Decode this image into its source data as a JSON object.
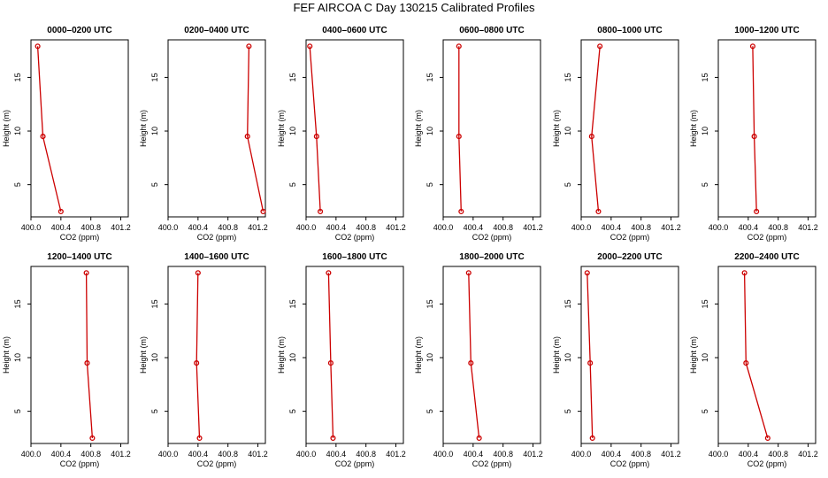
{
  "title": "FEF AIRCOA C  Day 130215  Calibrated Profiles",
  "chart_data": {
    "type": "line",
    "xlabel": "CO2 (ppm)",
    "ylabel": "Height (m)",
    "xlim": [
      400.0,
      401.3
    ],
    "ylim": [
      2.0,
      18.5
    ],
    "xticks": [
      "400.0",
      "400.4",
      "400.8",
      "401.2"
    ],
    "yticks": [
      "5",
      "10",
      "15"
    ],
    "series_color": "#cc0000",
    "panels": [
      {
        "name": "0000–0200 UTC",
        "heights": [
          17.9,
          9.5,
          2.5
        ],
        "co2": [
          400.09,
          400.16,
          400.4
        ]
      },
      {
        "name": "0200–0400 UTC",
        "heights": [
          17.9,
          9.5,
          2.5
        ],
        "co2": [
          401.08,
          401.06,
          401.27
        ]
      },
      {
        "name": "0400–0600 UTC",
        "heights": [
          17.9,
          9.5,
          2.5
        ],
        "co2": [
          400.05,
          400.14,
          400.19
        ]
      },
      {
        "name": "0600–0800 UTC",
        "heights": [
          17.9,
          9.5,
          2.5
        ],
        "co2": [
          400.21,
          400.21,
          400.24
        ]
      },
      {
        "name": "0800–1000 UTC",
        "heights": [
          17.9,
          9.5,
          2.5
        ],
        "co2": [
          400.25,
          400.14,
          400.23
        ]
      },
      {
        "name": "1000–1200 UTC",
        "heights": [
          17.9,
          9.5,
          2.5
        ],
        "co2": [
          400.46,
          400.48,
          400.51
        ]
      },
      {
        "name": "1200–1400 UTC",
        "heights": [
          17.9,
          9.5,
          2.5
        ],
        "co2": [
          400.74,
          400.75,
          400.82
        ]
      },
      {
        "name": "1400–1600 UTC",
        "heights": [
          17.9,
          9.5,
          2.5
        ],
        "co2": [
          400.4,
          400.38,
          400.42
        ]
      },
      {
        "name": "1600–1800 UTC",
        "heights": [
          17.9,
          9.5,
          2.5
        ],
        "co2": [
          400.3,
          400.33,
          400.36
        ]
      },
      {
        "name": "1800–2000 UTC",
        "heights": [
          17.9,
          9.5,
          2.5
        ],
        "co2": [
          400.34,
          400.37,
          400.48
        ]
      },
      {
        "name": "2000–2200 UTC",
        "heights": [
          17.9,
          9.5,
          2.5
        ],
        "co2": [
          400.08,
          400.12,
          400.15
        ]
      },
      {
        "name": "2200–2400 UTC",
        "heights": [
          17.9,
          9.5,
          2.5
        ],
        "co2": [
          400.35,
          400.37,
          400.66
        ]
      }
    ]
  }
}
